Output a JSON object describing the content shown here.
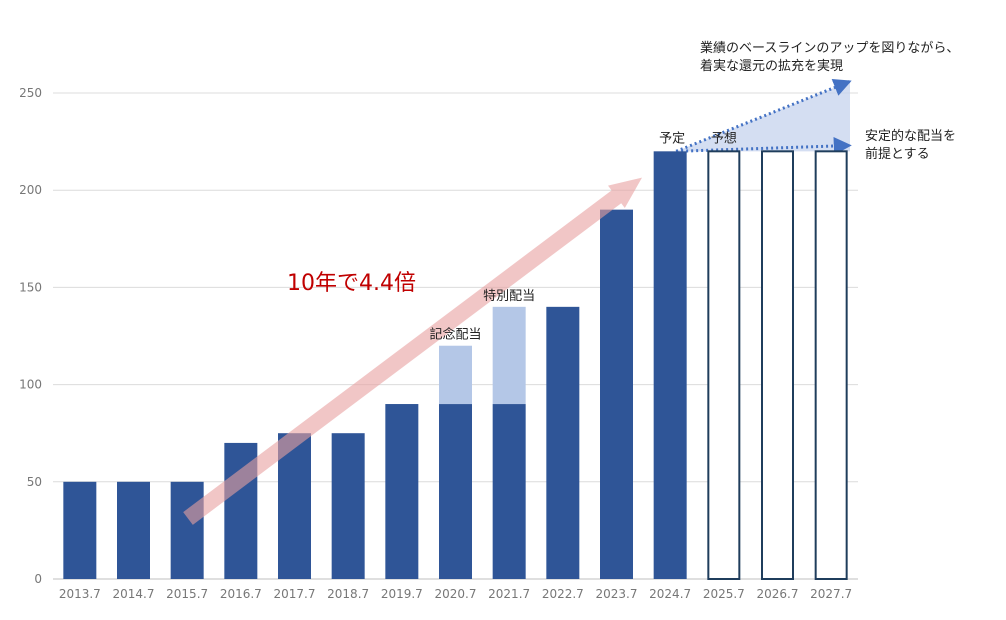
{
  "chart_data": {
    "type": "bar",
    "categories": [
      "2013.7",
      "2014.7",
      "2015.7",
      "2016.7",
      "2017.7",
      "2018.7",
      "2019.7",
      "2020.7",
      "2021.7",
      "2022.7",
      "2023.7",
      "2024.7",
      "2025.7",
      "2026.7",
      "2027.7"
    ],
    "series": [
      {
        "kind": "base",
        "values": [
          50,
          50,
          50,
          70,
          75,
          75,
          90,
          90,
          90,
          140,
          190,
          220,
          null,
          null,
          null
        ]
      },
      {
        "kind": "special",
        "values": [
          null,
          null,
          null,
          null,
          null,
          null,
          null,
          30,
          50,
          null,
          null,
          null,
          null,
          null,
          null
        ]
      },
      {
        "kind": "forecast",
        "values": [
          null,
          null,
          null,
          null,
          null,
          null,
          null,
          null,
          null,
          null,
          null,
          null,
          220,
          220,
          220
        ]
      }
    ],
    "ylim": [
      0,
      250
    ],
    "yticks": [
      0,
      50,
      100,
      150,
      200,
      250
    ],
    "grid": true,
    "colors": {
      "base": "#2f5597",
      "special": "#b4c7e7",
      "forecast_outline": "#1f3d5c",
      "arrow": "#e8a0a0",
      "growth_text": "#c00000",
      "dotted": "#4472c4",
      "wedge": "#c5d3ee"
    },
    "annotations": {
      "growth": "10年で4.4倍",
      "commemorative": "記念配当",
      "special": "特別配当",
      "plan": "予定",
      "forecast": "予想",
      "upper_note_line1": "業績のベースラインのアップを図りながら、",
      "upper_note_line2": "着実な還元の拡充を実現",
      "lower_note_line1": "安定的な配当を",
      "lower_note_line2": "前提とする"
    }
  }
}
